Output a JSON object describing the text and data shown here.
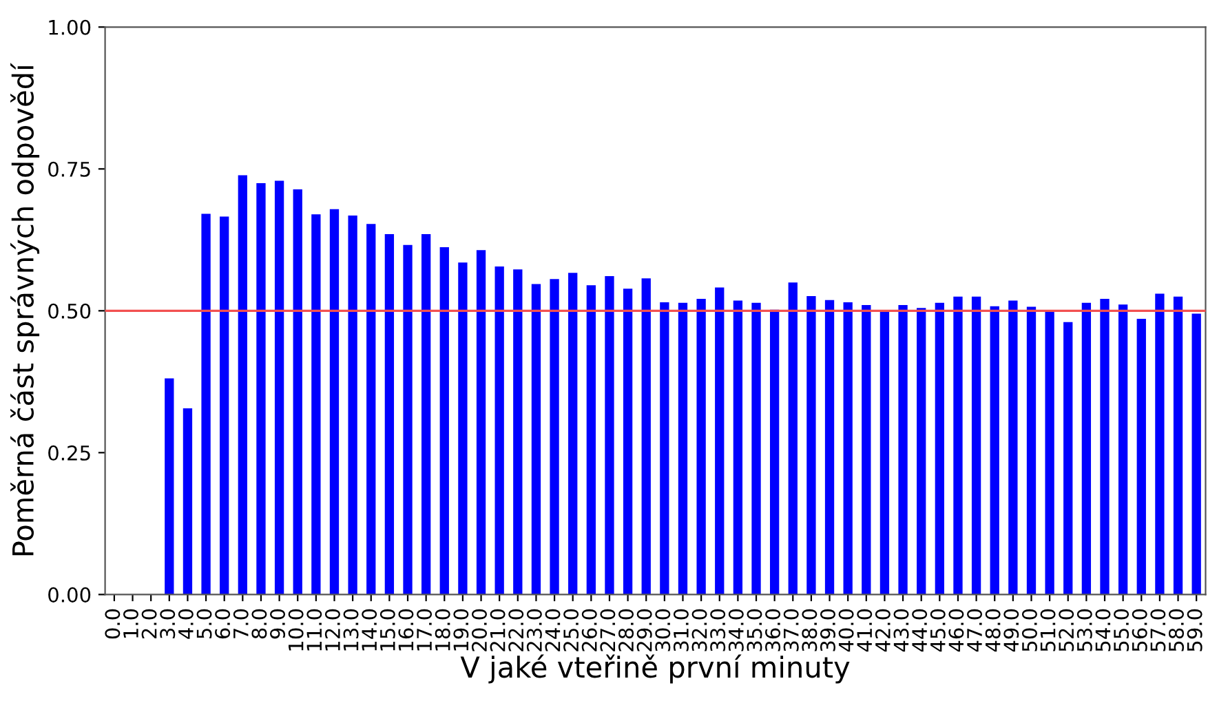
{
  "chart_data": {
    "type": "bar",
    "xlabel": "V jaké vteřině první minuty",
    "ylabel": "Poměrná část správných odpovědí",
    "categories": [
      "0.0",
      "1.0",
      "2.0",
      "3.0",
      "4.0",
      "5.0",
      "6.0",
      "7.0",
      "8.0",
      "9.0",
      "10.0",
      "11.0",
      "12.0",
      "13.0",
      "14.0",
      "15.0",
      "16.0",
      "17.0",
      "18.0",
      "19.0",
      "20.0",
      "21.0",
      "22.0",
      "23.0",
      "24.0",
      "25.0",
      "26.0",
      "27.0",
      "28.0",
      "29.0",
      "30.0",
      "31.0",
      "32.0",
      "33.0",
      "34.0",
      "35.0",
      "36.0",
      "37.0",
      "38.0",
      "39.0",
      "40.0",
      "41.0",
      "42.0",
      "43.0",
      "44.0",
      "45.0",
      "46.0",
      "47.0",
      "48.0",
      "49.0",
      "50.0",
      "51.0",
      "52.0",
      "53.0",
      "54.0",
      "55.0",
      "56.0",
      "57.0",
      "58.0",
      "59.0"
    ],
    "values": [
      null,
      null,
      null,
      0.381,
      0.328,
      0.671,
      0.666,
      0.739,
      0.725,
      0.729,
      0.714,
      0.67,
      0.679,
      0.668,
      0.653,
      0.635,
      0.616,
      0.635,
      0.612,
      0.585,
      0.607,
      0.578,
      0.573,
      0.547,
      0.556,
      0.567,
      0.545,
      0.561,
      0.539,
      0.557,
      0.515,
      0.514,
      0.521,
      0.541,
      0.518,
      0.514,
      0.502,
      0.55,
      0.526,
      0.519,
      0.515,
      0.51,
      0.5,
      0.51,
      0.505,
      0.514,
      0.525,
      0.525,
      0.508,
      0.518,
      0.507,
      0.501,
      0.48,
      0.514,
      0.521,
      0.511,
      0.486,
      0.53,
      0.525,
      0.495
    ],
    "color": "#0000ff",
    "ylim": [
      0,
      1
    ],
    "yticks": [
      {
        "value": 0,
        "label": "0.00"
      },
      {
        "value": 0.25,
        "label": "0.25"
      },
      {
        "value": 0.5,
        "label": "0.50"
      },
      {
        "value": 0.75,
        "label": "0.75"
      },
      {
        "value": 1,
        "label": "1.00"
      }
    ],
    "ref_lines": [
      {
        "axis": "y",
        "value": 0.5,
        "color": "#f25050",
        "line_style": "solid"
      }
    ]
  }
}
